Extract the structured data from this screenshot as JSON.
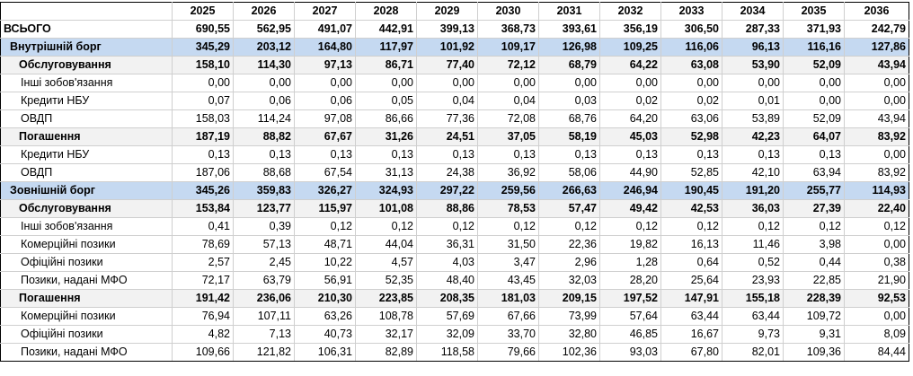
{
  "years": [
    "2025",
    "2026",
    "2027",
    "2028",
    "2029",
    "2030",
    "2031",
    "2032",
    "2033",
    "2034",
    "2035",
    "2036"
  ],
  "rows": [
    {
      "kind": "total",
      "label": "ВСЬОГО",
      "values": [
        "690,55",
        "562,95",
        "491,07",
        "442,91",
        "399,13",
        "368,73",
        "393,61",
        "356,19",
        "306,50",
        "287,33",
        "371,93",
        "242,79"
      ]
    },
    {
      "kind": "section",
      "label": "Внутрішній борг",
      "values": [
        "345,29",
        "203,12",
        "164,80",
        "117,97",
        "101,92",
        "109,17",
        "126,98",
        "109,25",
        "116,06",
        "96,13",
        "116,16",
        "127,86"
      ]
    },
    {
      "kind": "sub",
      "label": "Обслуговування",
      "values": [
        "158,10",
        "114,30",
        "97,13",
        "86,71",
        "77,40",
        "72,12",
        "68,79",
        "64,22",
        "63,08",
        "53,90",
        "52,09",
        "43,94"
      ]
    },
    {
      "kind": "item",
      "label": "Інші зобов'язання",
      "values": [
        "0,00",
        "0,00",
        "0,00",
        "0,00",
        "0,00",
        "0,00",
        "0,00",
        "0,00",
        "0,00",
        "0,00",
        "0,00",
        "0,00"
      ]
    },
    {
      "kind": "item",
      "label": "Кредити НБУ",
      "values": [
        "0,07",
        "0,06",
        "0,06",
        "0,05",
        "0,04",
        "0,04",
        "0,03",
        "0,02",
        "0,02",
        "0,01",
        "0,00",
        "0,00"
      ]
    },
    {
      "kind": "item",
      "label": "ОВДП",
      "values": [
        "158,03",
        "114,24",
        "97,08",
        "86,66",
        "77,36",
        "72,08",
        "68,76",
        "64,20",
        "63,06",
        "53,89",
        "52,09",
        "43,94"
      ]
    },
    {
      "kind": "sub",
      "label": "Погашення",
      "values": [
        "187,19",
        "88,82",
        "67,67",
        "31,26",
        "24,51",
        "37,05",
        "58,19",
        "45,03",
        "52,98",
        "42,23",
        "64,07",
        "83,92"
      ]
    },
    {
      "kind": "item",
      "label": "Кредити НБУ",
      "values": [
        "0,13",
        "0,13",
        "0,13",
        "0,13",
        "0,13",
        "0,13",
        "0,13",
        "0,13",
        "0,13",
        "0,13",
        "0,13",
        "0,00"
      ]
    },
    {
      "kind": "item",
      "label": "ОВДП",
      "values": [
        "187,06",
        "88,68",
        "67,54",
        "31,13",
        "24,38",
        "36,92",
        "58,06",
        "44,90",
        "52,85",
        "42,10",
        "63,94",
        "83,92"
      ]
    },
    {
      "kind": "section",
      "label": "Зовнішній борг",
      "values": [
        "345,26",
        "359,83",
        "326,27",
        "324,93",
        "297,22",
        "259,56",
        "266,63",
        "246,94",
        "190,45",
        "191,20",
        "255,77",
        "114,93"
      ]
    },
    {
      "kind": "sub",
      "label": "Обслуговування",
      "values": [
        "153,84",
        "123,77",
        "115,97",
        "101,08",
        "88,86",
        "78,53",
        "57,47",
        "49,42",
        "42,53",
        "36,03",
        "27,39",
        "22,40"
      ]
    },
    {
      "kind": "item",
      "label": "Інші зобов'язання",
      "values": [
        "0,41",
        "0,39",
        "0,12",
        "0,12",
        "0,12",
        "0,12",
        "0,12",
        "0,12",
        "0,12",
        "0,12",
        "0,12",
        "0,12"
      ]
    },
    {
      "kind": "item",
      "label": "Комерційні позики",
      "values": [
        "78,69",
        "57,13",
        "48,71",
        "44,04",
        "36,31",
        "31,50",
        "22,36",
        "19,82",
        "16,13",
        "11,46",
        "3,98",
        "0,00"
      ]
    },
    {
      "kind": "item",
      "label": "Офіційні позики",
      "values": [
        "2,57",
        "2,45",
        "10,22",
        "4,57",
        "4,03",
        "3,47",
        "2,96",
        "1,28",
        "0,64",
        "0,52",
        "0,44",
        "0,38"
      ]
    },
    {
      "kind": "item",
      "label": "Позики, надані МФО",
      "values": [
        "72,17",
        "63,79",
        "56,91",
        "52,35",
        "48,40",
        "43,45",
        "32,03",
        "28,20",
        "25,64",
        "23,93",
        "22,85",
        "21,90"
      ]
    },
    {
      "kind": "sub",
      "label": "Погашення",
      "values": [
        "191,42",
        "236,06",
        "210,30",
        "223,85",
        "208,35",
        "181,03",
        "209,15",
        "197,52",
        "147,91",
        "155,18",
        "228,39",
        "92,53"
      ]
    },
    {
      "kind": "item",
      "label": "Комерційні позики",
      "values": [
        "76,94",
        "107,11",
        "63,26",
        "108,78",
        "57,69",
        "67,66",
        "73,99",
        "57,64",
        "63,44",
        "63,44",
        "109,72",
        "0,00"
      ]
    },
    {
      "kind": "item",
      "label": "Офіційні позики",
      "values": [
        "4,82",
        "7,13",
        "40,73",
        "32,17",
        "32,09",
        "33,70",
        "32,80",
        "46,85",
        "16,67",
        "9,73",
        "9,31",
        "8,09"
      ]
    },
    {
      "kind": "item",
      "label": "Позики, надані МФО",
      "values": [
        "109,66",
        "121,82",
        "106,31",
        "82,89",
        "118,58",
        "79,66",
        "102,36",
        "93,03",
        "67,80",
        "82,01",
        "109,36",
        "84,44"
      ]
    }
  ]
}
